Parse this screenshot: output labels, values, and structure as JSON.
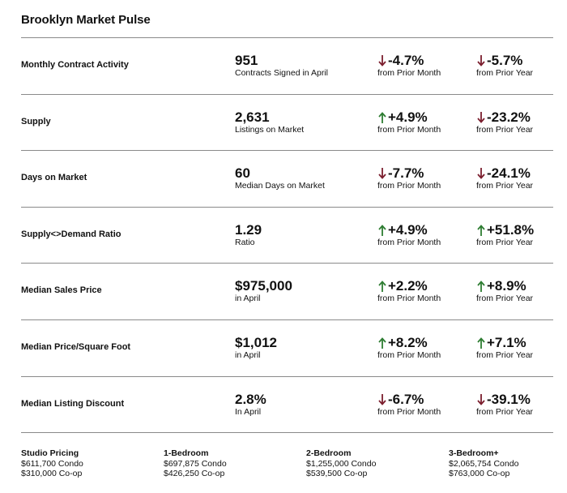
{
  "title": "Brooklyn Market Pulse",
  "colors": {
    "up": "#2e7d32",
    "down": "#7b1e2e",
    "divider": "#8a8a8a"
  },
  "rows": [
    {
      "label": "Monthly Contract Activity",
      "value": "951",
      "sub": "Contracts Signed in April",
      "month": {
        "dir": "down",
        "value": "-4.7%",
        "label": "from Prior Month"
      },
      "year": {
        "dir": "down",
        "value": "-5.7%",
        "label": "from Prior Year"
      }
    },
    {
      "label": "Supply",
      "value": "2,631",
      "sub": "Listings on Market",
      "month": {
        "dir": "up",
        "value": "+4.9%",
        "label": "from Prior Month"
      },
      "year": {
        "dir": "down",
        "value": "-23.2%",
        "label": "from Prior Year"
      }
    },
    {
      "label": "Days on Market",
      "value": "60",
      "sub": "Median Days on Market",
      "month": {
        "dir": "down",
        "value": "-7.7%",
        "label": "from Prior Month"
      },
      "year": {
        "dir": "down",
        "value": "-24.1%",
        "label": "from Prior Year"
      }
    },
    {
      "label": "Supply<>Demand Ratio",
      "value": "1.29",
      "sub": "Ratio",
      "month": {
        "dir": "up",
        "value": "+4.9%",
        "label": "from Prior Month"
      },
      "year": {
        "dir": "up",
        "value": "+51.8%",
        "label": "from Prior Year"
      }
    },
    {
      "label": "Median Sales Price",
      "value": "$975,000",
      "sub": "in April",
      "month": {
        "dir": "up",
        "value": "+2.2%",
        "label": "from Prior Month"
      },
      "year": {
        "dir": "up",
        "value": "+8.9%",
        "label": "from Prior Year"
      }
    },
    {
      "label": "Median Price/Square Foot",
      "value": "$1,012",
      "sub": "in April",
      "month": {
        "dir": "up",
        "value": "+8.2%",
        "label": "from Prior Month"
      },
      "year": {
        "dir": "up",
        "value": "+7.1%",
        "label": "from Prior Year"
      }
    },
    {
      "label": "Median Listing Discount",
      "value": "2.8%",
      "sub": "In April",
      "month": {
        "dir": "down",
        "value": "-6.7%",
        "label": "from Prior Month"
      },
      "year": {
        "dir": "down",
        "value": "-39.1%",
        "label": "from Prior Year"
      }
    }
  ],
  "footer": [
    {
      "heading": "Studio Pricing",
      "condo": "$611,700 Condo",
      "coop": "$310,000 Co-op"
    },
    {
      "heading": "1-Bedroom",
      "condo": "$697,875 Condo",
      "coop": "$426,250 Co-op"
    },
    {
      "heading": "2-Bedroom",
      "condo": "$1,255,000 Condo",
      "coop": "$539,500 Co-op"
    },
    {
      "heading": "3-Bedroom+",
      "condo": "$2,065,754 Condo",
      "coop": "$763,000 Co-op"
    }
  ]
}
